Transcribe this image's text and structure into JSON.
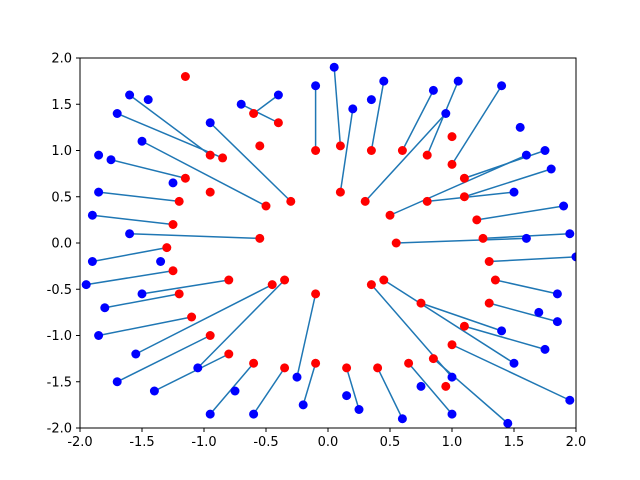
{
  "chart_data": {
    "type": "scatter",
    "title": "",
    "xlabel": "",
    "ylabel": "",
    "xlim": [
      -2.0,
      2.0
    ],
    "ylim": [
      -2.0,
      2.0
    ],
    "x_ticks": [
      "-2.0",
      "-1.5",
      "-1.0",
      "-0.5",
      "0.0",
      "0.5",
      "1.0",
      "1.5",
      "2.0"
    ],
    "y_ticks": [
      "-2.0",
      "-1.5",
      "-1.0",
      "-0.5",
      "0.0",
      "0.5",
      "1.0",
      "1.5",
      "2.0"
    ],
    "x_tick_values": [
      -2.0,
      -1.5,
      -1.0,
      -0.5,
      0.0,
      0.5,
      1.0,
      1.5,
      2.0
    ],
    "y_tick_values": [
      -2.0,
      -1.5,
      -1.0,
      -0.5,
      0.0,
      0.5,
      1.0,
      1.5,
      2.0
    ],
    "grid": false,
    "legend": "none",
    "colors": {
      "source_points": "#ff0000",
      "target_points": "#0000ff",
      "connector_lines": "#1f77b4"
    },
    "series": [
      {
        "type": "segments",
        "color": "#1f77b4",
        "pairs": [
          {
            "from": [
              -0.95,
              0.95
            ],
            "to": [
              -1.6,
              1.6
            ]
          },
          {
            "from": [
              -0.85,
              0.92
            ],
            "to": [
              -1.7,
              1.4
            ]
          },
          {
            "from": [
              -0.6,
              1.4
            ],
            "to": [
              -0.4,
              1.6
            ]
          },
          {
            "from": [
              -0.4,
              1.3
            ],
            "to": [
              -0.7,
              1.5
            ]
          },
          {
            "from": [
              -0.1,
              1.0
            ],
            "to": [
              -0.1,
              1.7
            ]
          },
          {
            "from": [
              0.1,
              1.05
            ],
            "to": [
              0.05,
              1.9
            ]
          },
          {
            "from": [
              0.35,
              1.0
            ],
            "to": [
              0.45,
              1.75
            ]
          },
          {
            "from": [
              0.6,
              1.0
            ],
            "to": [
              0.85,
              1.65
            ]
          },
          {
            "from": [
              0.8,
              0.95
            ],
            "to": [
              1.05,
              1.75
            ]
          },
          {
            "from": [
              1.0,
              0.85
            ],
            "to": [
              1.4,
              1.7
            ]
          },
          {
            "from": [
              1.1,
              0.7
            ],
            "to": [
              1.75,
              1.0
            ]
          },
          {
            "from": [
              1.1,
              0.5
            ],
            "to": [
              1.8,
              0.8
            ]
          },
          {
            "from": [
              1.2,
              0.25
            ],
            "to": [
              1.9,
              0.4
            ]
          },
          {
            "from": [
              1.25,
              0.05
            ],
            "to": [
              1.95,
              0.1
            ]
          },
          {
            "from": [
              1.3,
              -0.2
            ],
            "to": [
              2.0,
              -0.15
            ]
          },
          {
            "from": [
              1.35,
              -0.4
            ],
            "to": [
              1.85,
              -0.55
            ]
          },
          {
            "from": [
              1.3,
              -0.65
            ],
            "to": [
              1.85,
              -0.85
            ]
          },
          {
            "from": [
              1.1,
              -0.9
            ],
            "to": [
              1.75,
              -1.15
            ]
          },
          {
            "from": [
              1.0,
              -1.1
            ],
            "to": [
              1.95,
              -1.7
            ]
          },
          {
            "from": [
              0.85,
              -1.25
            ],
            "to": [
              1.45,
              -1.95
            ]
          },
          {
            "from": [
              0.65,
              -1.3
            ],
            "to": [
              1.0,
              -1.85
            ]
          },
          {
            "from": [
              0.4,
              -1.35
            ],
            "to": [
              0.6,
              -1.9
            ]
          },
          {
            "from": [
              0.15,
              -1.35
            ],
            "to": [
              0.25,
              -1.8
            ]
          },
          {
            "from": [
              -0.1,
              -1.3
            ],
            "to": [
              -0.2,
              -1.75
            ]
          },
          {
            "from": [
              -0.35,
              -1.35
            ],
            "to": [
              -0.6,
              -1.85
            ]
          },
          {
            "from": [
              -0.6,
              -1.3
            ],
            "to": [
              -0.95,
              -1.85
            ]
          },
          {
            "from": [
              -0.8,
              -1.2
            ],
            "to": [
              -1.4,
              -1.6
            ]
          },
          {
            "from": [
              -0.95,
              -1.0
            ],
            "to": [
              -1.7,
              -1.5
            ]
          },
          {
            "from": [
              -1.1,
              -0.8
            ],
            "to": [
              -1.85,
              -1.0
            ]
          },
          {
            "from": [
              -1.2,
              -0.55
            ],
            "to": [
              -1.8,
              -0.7
            ]
          },
          {
            "from": [
              -1.25,
              -0.3
            ],
            "to": [
              -1.95,
              -0.45
            ]
          },
          {
            "from": [
              -1.3,
              -0.05
            ],
            "to": [
              -1.9,
              -0.2
            ]
          },
          {
            "from": [
              -1.25,
              0.2
            ],
            "to": [
              -1.9,
              0.3
            ]
          },
          {
            "from": [
              -1.2,
              0.45
            ],
            "to": [
              -1.85,
              0.55
            ]
          },
          {
            "from": [
              -1.15,
              0.7
            ],
            "to": [
              -1.75,
              0.9
            ]
          },
          {
            "from": [
              -0.5,
              0.4
            ],
            "to": [
              -1.5,
              1.1
            ]
          },
          {
            "from": [
              0.5,
              0.3
            ],
            "to": [
              1.6,
              0.95
            ]
          },
          {
            "from": [
              0.45,
              -0.4
            ],
            "to": [
              1.5,
              -1.3
            ]
          },
          {
            "from": [
              -0.45,
              -0.45
            ],
            "to": [
              -1.55,
              -1.2
            ]
          },
          {
            "from": [
              0.1,
              0.55
            ],
            "to": [
              0.2,
              1.45
            ]
          },
          {
            "from": [
              -0.1,
              -0.55
            ],
            "to": [
              -0.25,
              -1.45
            ]
          },
          {
            "from": [
              0.55,
              0.0
            ],
            "to": [
              1.6,
              0.05
            ]
          },
          {
            "from": [
              -0.55,
              0.05
            ],
            "to": [
              -1.6,
              0.1
            ]
          },
          {
            "from": [
              0.3,
              0.45
            ],
            "to": [
              0.95,
              1.4
            ]
          },
          {
            "from": [
              -0.3,
              0.45
            ],
            "to": [
              -0.95,
              1.3
            ]
          },
          {
            "from": [
              0.35,
              -0.45
            ],
            "to": [
              1.0,
              -1.45
            ]
          },
          {
            "from": [
              -0.35,
              -0.4
            ],
            "to": [
              -1.05,
              -1.35
            ]
          },
          {
            "from": [
              0.8,
              0.45
            ],
            "to": [
              1.5,
              0.55
            ]
          },
          {
            "from": [
              -0.8,
              -0.4
            ],
            "to": [
              -1.5,
              -0.55
            ]
          },
          {
            "from": [
              0.75,
              -0.65
            ],
            "to": [
              1.4,
              -0.95
            ]
          }
        ]
      },
      {
        "name": "",
        "type": "scatter",
        "color": "#ff0000",
        "points": [
          [
            -0.95,
            0.95
          ],
          [
            -0.85,
            0.92
          ],
          [
            -0.6,
            1.4
          ],
          [
            -0.4,
            1.3
          ],
          [
            -0.1,
            1.0
          ],
          [
            0.1,
            1.05
          ],
          [
            0.35,
            1.0
          ],
          [
            0.6,
            1.0
          ],
          [
            0.8,
            0.95
          ],
          [
            1.0,
            0.85
          ],
          [
            1.1,
            0.7
          ],
          [
            1.1,
            0.5
          ],
          [
            1.2,
            0.25
          ],
          [
            1.25,
            0.05
          ],
          [
            1.3,
            -0.2
          ],
          [
            1.35,
            -0.4
          ],
          [
            1.3,
            -0.65
          ],
          [
            1.1,
            -0.9
          ],
          [
            1.0,
            -1.1
          ],
          [
            0.85,
            -1.25
          ],
          [
            0.65,
            -1.3
          ],
          [
            0.4,
            -1.35
          ],
          [
            0.15,
            -1.35
          ],
          [
            -0.1,
            -1.3
          ],
          [
            -0.35,
            -1.35
          ],
          [
            -0.6,
            -1.3
          ],
          [
            -0.8,
            -1.2
          ],
          [
            -0.95,
            -1.0
          ],
          [
            -1.1,
            -0.8
          ],
          [
            -1.2,
            -0.55
          ],
          [
            -1.25,
            -0.3
          ],
          [
            -1.3,
            -0.05
          ],
          [
            -1.25,
            0.2
          ],
          [
            -1.2,
            0.45
          ],
          [
            -1.15,
            0.7
          ],
          [
            -0.5,
            0.4
          ],
          [
            0.5,
            0.3
          ],
          [
            0.45,
            -0.4
          ],
          [
            -0.45,
            -0.45
          ],
          [
            0.1,
            0.55
          ],
          [
            -0.1,
            -0.55
          ],
          [
            0.55,
            0.0
          ],
          [
            -0.55,
            0.05
          ],
          [
            0.3,
            0.45
          ],
          [
            -0.3,
            0.45
          ],
          [
            0.35,
            -0.45
          ],
          [
            -0.35,
            -0.4
          ],
          [
            0.8,
            0.45
          ],
          [
            -0.8,
            -0.4
          ],
          [
            0.75,
            -0.65
          ],
          [
            -1.15,
            1.8
          ],
          [
            1.0,
            1.15
          ],
          [
            -0.55,
            1.05
          ],
          [
            0.95,
            -1.55
          ],
          [
            -0.95,
            0.55
          ]
        ]
      },
      {
        "name": "",
        "type": "scatter",
        "color": "#0000ff",
        "points": [
          [
            -1.6,
            1.6
          ],
          [
            -1.7,
            1.4
          ],
          [
            -0.4,
            1.6
          ],
          [
            -0.7,
            1.5
          ],
          [
            -0.1,
            1.7
          ],
          [
            0.05,
            1.9
          ],
          [
            0.45,
            1.75
          ],
          [
            0.85,
            1.65
          ],
          [
            1.05,
            1.75
          ],
          [
            1.4,
            1.7
          ],
          [
            1.75,
            1.0
          ],
          [
            1.8,
            0.8
          ],
          [
            1.9,
            0.4
          ],
          [
            1.95,
            0.1
          ],
          [
            2.0,
            -0.15
          ],
          [
            1.85,
            -0.55
          ],
          [
            1.85,
            -0.85
          ],
          [
            1.75,
            -1.15
          ],
          [
            1.95,
            -1.7
          ],
          [
            1.45,
            -1.95
          ],
          [
            1.0,
            -1.85
          ],
          [
            0.6,
            -1.9
          ],
          [
            0.25,
            -1.8
          ],
          [
            -0.2,
            -1.75
          ],
          [
            -0.6,
            -1.85
          ],
          [
            -0.95,
            -1.85
          ],
          [
            -1.4,
            -1.6
          ],
          [
            -1.7,
            -1.5
          ],
          [
            -1.85,
            -1.0
          ],
          [
            -1.8,
            -0.7
          ],
          [
            -1.95,
            -0.45
          ],
          [
            -1.9,
            -0.2
          ],
          [
            -1.9,
            0.3
          ],
          [
            -1.85,
            0.55
          ],
          [
            -1.75,
            0.9
          ],
          [
            -1.5,
            1.1
          ],
          [
            1.6,
            0.95
          ],
          [
            1.5,
            -1.3
          ],
          [
            -1.55,
            -1.2
          ],
          [
            0.2,
            1.45
          ],
          [
            -0.25,
            -1.45
          ],
          [
            1.6,
            0.05
          ],
          [
            -1.6,
            0.1
          ],
          [
            0.95,
            1.4
          ],
          [
            -0.95,
            1.3
          ],
          [
            1.0,
            -1.45
          ],
          [
            -1.05,
            -1.35
          ],
          [
            1.5,
            0.55
          ],
          [
            -1.5,
            -0.55
          ],
          [
            1.4,
            -0.95
          ],
          [
            -1.85,
            0.95
          ],
          [
            -1.45,
            1.55
          ],
          [
            0.35,
            1.55
          ],
          [
            1.55,
            1.25
          ],
          [
            1.7,
            -0.75
          ],
          [
            -1.35,
            -0.2
          ],
          [
            0.15,
            -1.65
          ],
          [
            -0.75,
            -1.6
          ],
          [
            0.75,
            -1.55
          ],
          [
            -1.25,
            0.65
          ]
        ]
      }
    ]
  }
}
